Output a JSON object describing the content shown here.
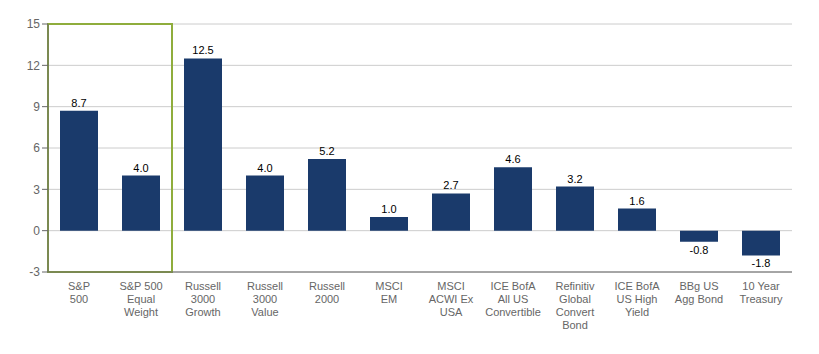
{
  "chart_data": {
    "type": "bar",
    "categories": [
      "S&P\n500",
      "S&P 500\nEqual\nWeight",
      "Russell\n3000\nGrowth",
      "Russell\n3000\nValue",
      "Russell\n2000",
      "MSCI\nEM",
      "MSCI\nACWI Ex\nUSA",
      "ICE BofA\nAll US\nConvertible",
      "Refinitiv\nGlobal\nConvert\nBond",
      "ICE BofA\nUS High\nYield",
      "BBg US\nAgg Bond",
      "10 Year\nTreasury"
    ],
    "values": [
      8.7,
      4.0,
      12.5,
      4.0,
      5.2,
      1.0,
      2.7,
      4.6,
      3.2,
      1.6,
      -0.8,
      -1.8
    ],
    "value_labels": [
      "8.7",
      "4.0",
      "12.5",
      "4.0",
      "5.2",
      "1.0",
      "2.7",
      "4.6",
      "3.2",
      "1.6",
      "-0.8",
      "-1.8"
    ],
    "data_labels": true,
    "color": "#1a3a6b",
    "ylim": [
      -3,
      15
    ],
    "yticks": [
      -3,
      0,
      3,
      6,
      9,
      12,
      15
    ],
    "grid": true,
    "highlight": {
      "categories": [
        "S&P\n500",
        "S&P 500\nEqual\nWeight"
      ],
      "color": "#8fad3c"
    }
  }
}
